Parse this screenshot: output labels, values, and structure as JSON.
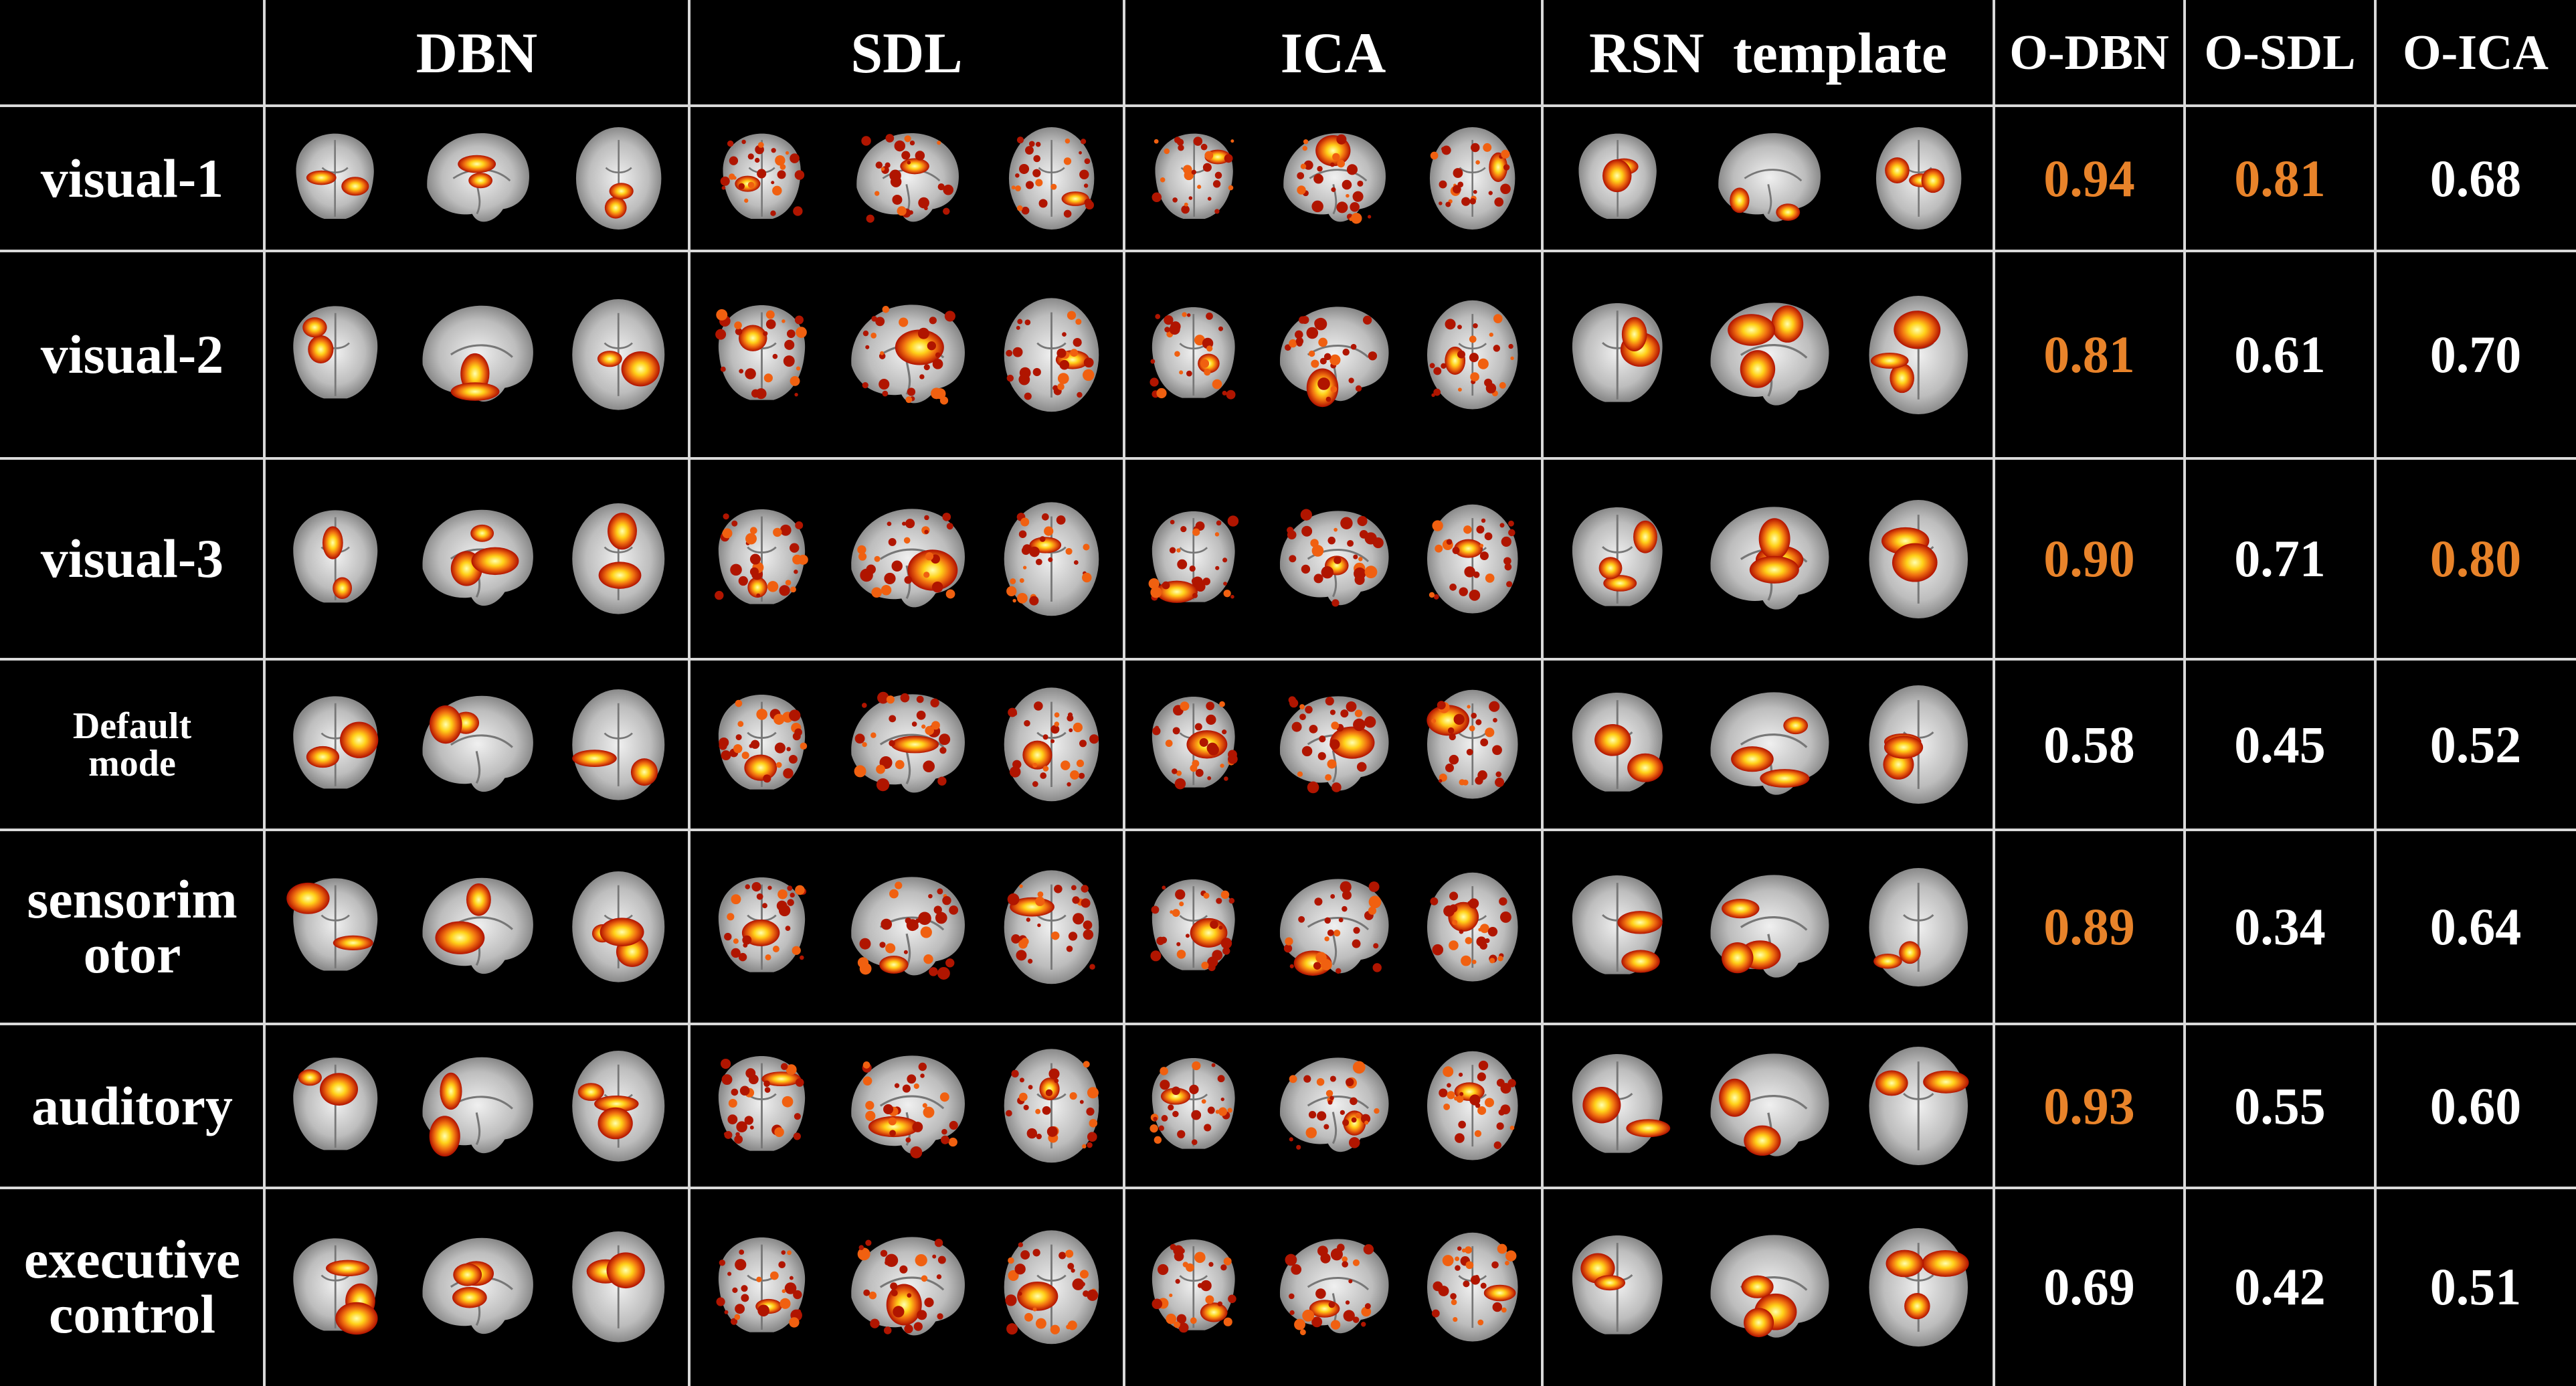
{
  "header": {
    "methods": [
      "DBN",
      "SDL",
      "ICA",
      "RSN  template"
    ],
    "overlaps": [
      "O-DBN",
      "O-SDL",
      "O-ICA"
    ]
  },
  "colors": {
    "background": "#000000",
    "text": "#ffffff",
    "highlight": "#e8832a",
    "grid": "#d9d9d9"
  },
  "rows": [
    {
      "label": "visual-1",
      "values": [
        "0.94",
        "0.81",
        "0.68"
      ],
      "highlight": [
        true,
        true,
        false
      ]
    },
    {
      "label": "visual-2",
      "values": [
        "0.81",
        "0.61",
        "0.70"
      ],
      "highlight": [
        true,
        false,
        false
      ]
    },
    {
      "label": "visual-3",
      "values": [
        "0.90",
        "0.71",
        "0.80"
      ],
      "highlight": [
        true,
        false,
        true
      ]
    },
    {
      "label": "Default\nmode",
      "values": [
        "0.58",
        "0.45",
        "0.52"
      ],
      "highlight": [
        false,
        false,
        false
      ]
    },
    {
      "label": "sensorim\notor",
      "values": [
        "0.89",
        "0.34",
        "0.64"
      ],
      "highlight": [
        true,
        false,
        false
      ]
    },
    {
      "label": "auditory",
      "values": [
        "0.93",
        "0.55",
        "0.60"
      ],
      "highlight": [
        true,
        false,
        false
      ]
    },
    {
      "label": "executive\ncontrol",
      "values": [
        "0.69",
        "0.42",
        "0.51"
      ],
      "highlight": [
        false,
        false,
        false
      ]
    }
  ],
  "views": [
    "coronal",
    "sagittal",
    "axial"
  ],
  "brain_maps": {
    "description_colormap": "hot (red-yellow) activation over grey MRI",
    "methods": [
      "DBN",
      "SDL",
      "ICA",
      "RSN template"
    ]
  }
}
